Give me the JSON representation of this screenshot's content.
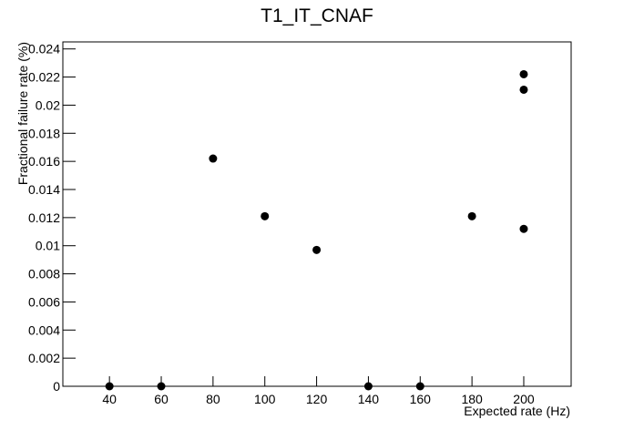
{
  "chart_data": {
    "type": "scatter",
    "title": "T1_IT_CNAF",
    "x_label": "Expected rate (Hz)",
    "y_label": "Fractional failure rate (%)",
    "series": [
      {
        "color": "#000000",
        "x": [
          40,
          60,
          80,
          100,
          120,
          140,
          160,
          180,
          200,
          200,
          200
        ],
        "values": [
          0,
          0,
          0.0162,
          0.0121,
          0.0097,
          0,
          0,
          0.0121,
          0.0222,
          0.0211,
          0.0112
        ]
      }
    ],
    "xlim": [
      22,
      218.3
    ],
    "ylim": [
      0,
      0.0245
    ],
    "xticks": [
      40,
      60,
      80,
      100,
      120,
      140,
      160,
      180,
      200
    ],
    "yticks": [
      0,
      0.002,
      0.004,
      0.006,
      0.008,
      0.01,
      0.012,
      0.014,
      0.016,
      0.018,
      0.02,
      0.022,
      0.024
    ],
    "grid": false
  }
}
